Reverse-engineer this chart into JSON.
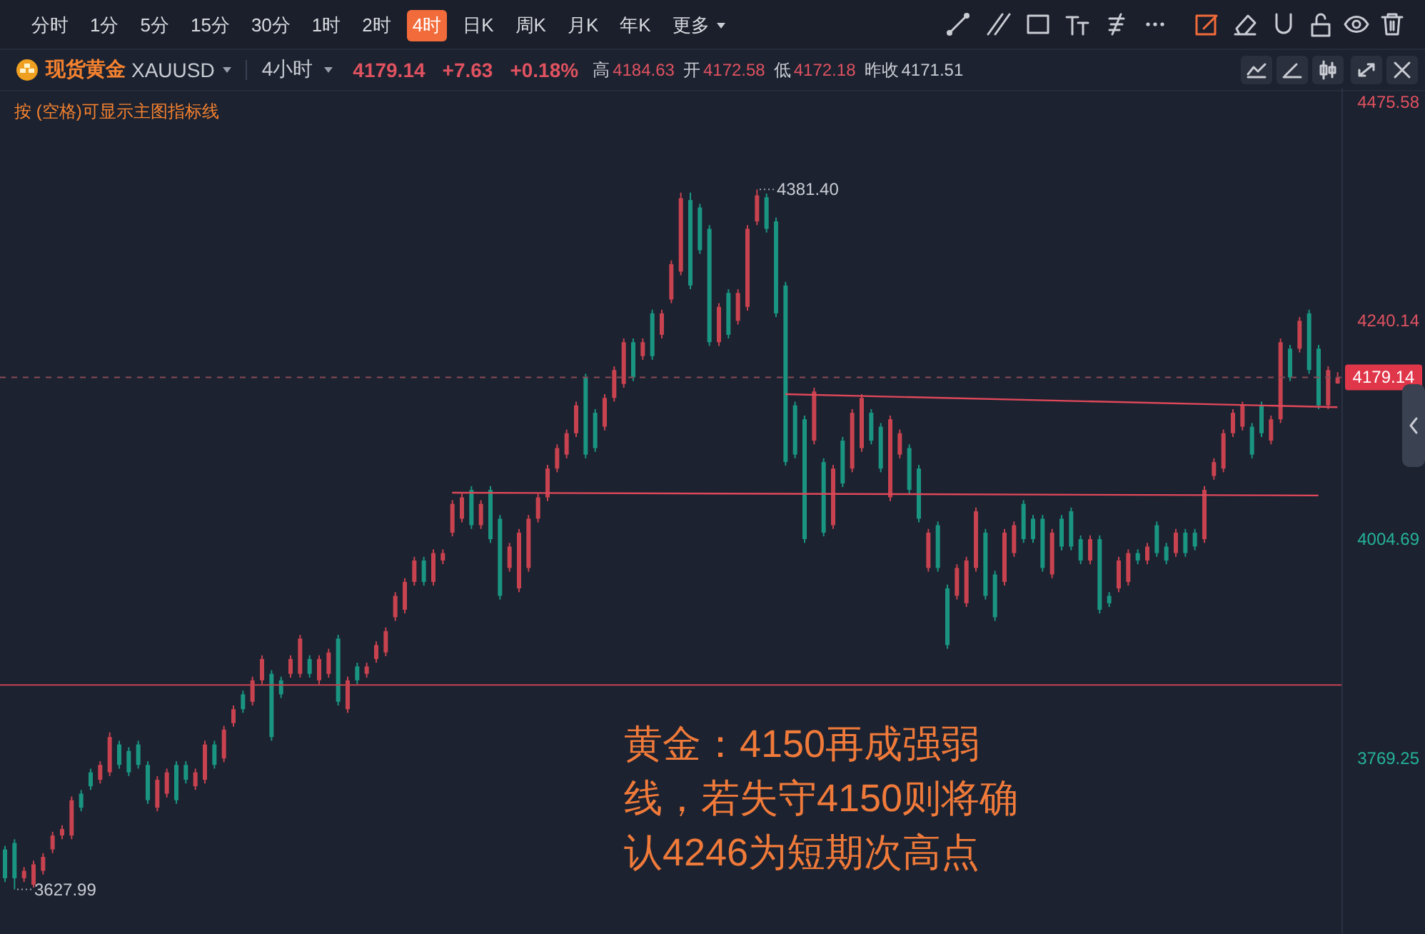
{
  "chart_data": {
    "type": "candlestick",
    "title": "现货黄金",
    "subtitle": "XAUUSD",
    "categories": [
      null,
      null,
      null,
      null,
      null,
      null,
      null,
      null,
      null,
      null,
      null,
      null,
      null,
      null,
      null,
      null,
      null,
      null,
      null,
      null,
      null,
      null,
      null,
      null,
      null,
      null,
      null,
      null,
      null,
      null,
      null,
      null,
      null,
      null,
      null,
      null,
      null,
      null,
      null,
      null,
      null,
      null,
      null,
      null,
      null,
      null,
      null,
      null,
      null,
      null,
      null,
      null,
      null,
      null,
      null,
      null,
      null,
      null,
      null,
      null,
      null,
      null,
      null,
      null,
      null,
      null,
      null,
      null,
      null,
      null,
      null,
      null,
      null,
      null,
      null,
      null,
      null,
      null,
      null,
      null,
      null,
      null,
      null,
      null,
      null,
      null,
      null,
      null,
      null,
      null,
      null,
      null,
      null,
      null,
      null,
      null,
      null,
      null,
      null,
      null,
      null,
      null,
      null,
      null,
      null,
      null,
      null,
      null,
      null,
      null,
      null,
      null,
      null,
      null,
      null,
      null,
      null,
      null,
      null,
      null,
      null,
      null,
      null,
      null,
      null,
      null,
      null,
      null,
      null,
      null,
      null,
      null,
      null,
      null,
      null,
      null,
      null,
      null,
      null,
      null,
      null
    ],
    "ohlc": [
      [
        3671,
        3675,
        3636,
        3640
      ],
      [
        3678,
        3682,
        3627.99,
        3640
      ],
      [
        3640,
        3652,
        3636,
        3648
      ],
      [
        3633,
        3659,
        3630,
        3655
      ],
      [
        3648,
        3667,
        3644,
        3663
      ],
      [
        3671,
        3690,
        3667,
        3686
      ],
      [
        3686,
        3697,
        3682,
        3693
      ],
      [
        3686,
        3728,
        3682,
        3724
      ],
      [
        3731,
        3735,
        3712,
        3716
      ],
      [
        3754,
        3758,
        3735,
        3739
      ],
      [
        3746,
        3766,
        3742,
        3762
      ],
      [
        3754,
        3797,
        3750,
        3792
      ],
      [
        3784,
        3788,
        3758,
        3762
      ],
      [
        3777,
        3781,
        3750,
        3754
      ],
      [
        3784,
        3788,
        3758,
        3762
      ],
      [
        3762,
        3766,
        3720,
        3724
      ],
      [
        3716,
        3750,
        3712,
        3746
      ],
      [
        3731,
        3758,
        3727,
        3754
      ],
      [
        3762,
        3766,
        3720,
        3724
      ],
      [
        3762,
        3766,
        3742,
        3746
      ],
      [
        3739,
        3758,
        3735,
        3754
      ],
      [
        3746,
        3788,
        3742,
        3784
      ],
      [
        3784,
        3788,
        3758,
        3762
      ],
      [
        3769,
        3804,
        3765,
        3800
      ],
      [
        3807,
        3826,
        3803,
        3822
      ],
      [
        3838,
        3842,
        3818,
        3822
      ],
      [
        3830,
        3857,
        3826,
        3853
      ],
      [
        3853,
        3880,
        3849,
        3876
      ],
      [
        3860,
        3864,
        3788,
        3792
      ],
      [
        3853,
        3857,
        3834,
        3838
      ],
      [
        3860,
        3880,
        3856,
        3876
      ],
      [
        3860,
        3902,
        3856,
        3898
      ],
      [
        3876,
        3880,
        3856,
        3860
      ],
      [
        3853,
        3880,
        3849,
        3876
      ],
      [
        3860,
        3887,
        3856,
        3883
      ],
      [
        3898,
        3902,
        3826,
        3830
      ],
      [
        3822,
        3857,
        3818,
        3853
      ],
      [
        3868,
        3872,
        3849,
        3853
      ],
      [
        3860,
        3872,
        3856,
        3868
      ],
      [
        3876,
        3895,
        3872,
        3891
      ],
      [
        3883,
        3910,
        3879,
        3906
      ],
      [
        3921,
        3948,
        3917,
        3944
      ],
      [
        3929,
        3963,
        3925,
        3959
      ],
      [
        3959,
        3986,
        3955,
        3982
      ],
      [
        3982,
        3986,
        3955,
        3959
      ],
      [
        3959,
        3994,
        3955,
        3990
      ],
      [
        3982,
        3994,
        3978,
        3990
      ],
      [
        4012,
        4047,
        4008,
        4043
      ],
      [
        4027,
        4054,
        4023,
        4050
      ],
      [
        4058,
        4062,
        4016,
        4020
      ],
      [
        4020,
        4047,
        4016,
        4043
      ],
      [
        4058,
        4062,
        4001,
        4005
      ],
      [
        4027,
        4031,
        3940,
        3944
      ],
      [
        3974,
        4001,
        3970,
        3997
      ],
      [
        3952,
        4016,
        3948,
        4012
      ],
      [
        3974,
        4031,
        3970,
        4027
      ],
      [
        4027,
        4054,
        4023,
        4050
      ],
      [
        4050,
        4085,
        4046,
        4081
      ],
      [
        4081,
        4107,
        4077,
        4103
      ],
      [
        4096,
        4123,
        4092,
        4119
      ],
      [
        4119,
        4153,
        4115,
        4149
      ],
      [
        4179,
        4183,
        4092,
        4096
      ],
      [
        4141,
        4145,
        4099,
        4103
      ],
      [
        4126,
        4161,
        4122,
        4157
      ],
      [
        4157,
        4191,
        4153,
        4187
      ],
      [
        4172,
        4221,
        4168,
        4217
      ],
      [
        4217,
        4221,
        4175,
        4179
      ],
      [
        4202,
        4221,
        4198,
        4217
      ],
      [
        4248,
        4252,
        4198,
        4202
      ],
      [
        4225,
        4252,
        4221,
        4248
      ],
      [
        4263,
        4305,
        4259,
        4301
      ],
      [
        4293,
        4378,
        4289,
        4372
      ],
      [
        4370,
        4378,
        4274,
        4278
      ],
      [
        4362,
        4366,
        4312,
        4316
      ],
      [
        4339,
        4343,
        4213,
        4217
      ],
      [
        4217,
        4259,
        4213,
        4255
      ],
      [
        4270,
        4274,
        4221,
        4225
      ],
      [
        4240,
        4274,
        4236,
        4270
      ],
      [
        4255,
        4343,
        4251,
        4339
      ],
      [
        4347,
        4381.4,
        4343,
        4375
      ],
      [
        4373,
        4377,
        4335,
        4339
      ],
      [
        4347,
        4351,
        4244,
        4248
      ],
      [
        4278,
        4282,
        4084,
        4088
      ],
      [
        4149,
        4153,
        4092,
        4096
      ],
      [
        4134,
        4138,
        4001,
        4005
      ],
      [
        4111,
        4168,
        4107,
        4164
      ],
      [
        4088,
        4092,
        4008,
        4012
      ],
      [
        4020,
        4085,
        4016,
        4081
      ],
      [
        4111,
        4115,
        4061,
        4065
      ],
      [
        4081,
        4145,
        4077,
        4141
      ],
      [
        4103,
        4161,
        4099,
        4157
      ],
      [
        4141,
        4145,
        4107,
        4111
      ],
      [
        4126,
        4130,
        4077,
        4081
      ],
      [
        4050,
        4138,
        4046,
        4134
      ],
      [
        4096,
        4123,
        4092,
        4119
      ],
      [
        4103,
        4107,
        4054,
        4058
      ],
      [
        4081,
        4085,
        4023,
        4027
      ],
      [
        3974,
        4016,
        3970,
        4012
      ],
      [
        4020,
        4024,
        3970,
        3974
      ],
      [
        3952,
        3956,
        3887,
        3891
      ],
      [
        3944,
        3978,
        3940,
        3974
      ],
      [
        3936,
        3986,
        3932,
        3982
      ],
      [
        3974,
        4039,
        3970,
        4035
      ],
      [
        4012,
        4016,
        3940,
        3944
      ],
      [
        3967,
        3971,
        3917,
        3921
      ],
      [
        3959,
        4016,
        3955,
        4012
      ],
      [
        3990,
        4024,
        3986,
        4020
      ],
      [
        4043,
        4047,
        4001,
        4005
      ],
      [
        4027,
        4031,
        4001,
        4005
      ],
      [
        4027,
        4031,
        3970,
        3974
      ],
      [
        3967,
        4016,
        3963,
        4012
      ],
      [
        4027,
        4031,
        3993,
        3997
      ],
      [
        4035,
        4039,
        3993,
        3997
      ],
      [
        4005,
        4009,
        3978,
        3982
      ],
      [
        3982,
        4009,
        3978,
        4005
      ],
      [
        4005,
        4009,
        3925,
        3929
      ],
      [
        3944,
        3948,
        3932,
        3936
      ],
      [
        3952,
        3986,
        3948,
        3982
      ],
      [
        3959,
        3994,
        3955,
        3990
      ],
      [
        3990,
        3994,
        3978,
        3982
      ],
      [
        3982,
        4001,
        3978,
        3997
      ],
      [
        4020,
        4024,
        3986,
        3990
      ],
      [
        3997,
        4001,
        3978,
        3982
      ],
      [
        3990,
        4016,
        3986,
        4012
      ],
      [
        4012,
        4016,
        3986,
        3990
      ],
      [
        4012,
        4016,
        3993,
        3997
      ],
      [
        4005,
        4062,
        4001,
        4058
      ],
      [
        4073,
        4092,
        4069,
        4088
      ],
      [
        4081,
        4123,
        4077,
        4119
      ],
      [
        4119,
        4145,
        4115,
        4141
      ],
      [
        4126,
        4153,
        4122,
        4149
      ],
      [
        4126,
        4130,
        4092,
        4096
      ],
      [
        4149,
        4153,
        4115,
        4119
      ],
      [
        4111,
        4138,
        4107,
        4134
      ],
      [
        4134,
        4221,
        4130,
        4217
      ],
      [
        4210,
        4214,
        4175,
        4179
      ],
      [
        4210,
        4244,
        4206,
        4240
      ],
      [
        4248,
        4252,
        4183,
        4187
      ],
      [
        4210,
        4214,
        4145,
        4149
      ],
      [
        4149,
        4191,
        4145,
        4187
      ],
      [
        4172.58,
        4184.63,
        4172.18,
        4179.14
      ]
    ],
    "colors": [
      "#1a9582",
      "#1a9582",
      "#c8424f",
      "#c8424f",
      "#c8424f",
      "#c8424f",
      "#c8424f",
      "#c8424f",
      "#1a9582",
      "#1a9582",
      "#c8424f",
      "#c8424f",
      "#1a9582",
      "#1a9582",
      "#1a9582",
      "#1a9582",
      "#c8424f",
      "#c8424f",
      "#1a9582",
      "#1a9582",
      "#c8424f",
      "#c8424f",
      "#1a9582",
      "#c8424f",
      "#c8424f",
      "#1a9582",
      "#c8424f",
      "#c8424f",
      "#1a9582",
      "#1a9582",
      "#c8424f",
      "#c8424f",
      "#1a9582",
      "#c8424f",
      "#c8424f",
      "#1a9582",
      "#c8424f",
      "#1a9582",
      "#c8424f",
      "#c8424f",
      "#c8424f",
      "#c8424f",
      "#c8424f",
      "#c8424f",
      "#1a9582",
      "#c8424f",
      "#c8424f",
      "#c8424f",
      "#c8424f",
      "#1a9582",
      "#c8424f",
      "#1a9582",
      "#1a9582",
      "#c8424f",
      "#c8424f",
      "#c8424f",
      "#c8424f",
      "#c8424f",
      "#c8424f",
      "#c8424f",
      "#c8424f",
      "#1a9582",
      "#1a9582",
      "#c8424f",
      "#c8424f",
      "#c8424f",
      "#1a9582",
      "#c8424f",
      "#1a9582",
      "#c8424f",
      "#c8424f",
      "#c8424f",
      "#1a9582",
      "#1a9582",
      "#1a9582",
      "#c8424f",
      "#1a9582",
      "#c8424f",
      "#c8424f",
      "#c8424f",
      "#1a9582",
      "#1a9582",
      "#1a9582",
      "#1a9582",
      "#1a9582",
      "#c8424f",
      "#1a9582",
      "#c8424f",
      "#1a9582",
      "#c8424f",
      "#c8424f",
      "#1a9582",
      "#1a9582",
      "#c8424f",
      "#c8424f",
      "#1a9582",
      "#1a9582",
      "#c8424f",
      "#1a9582",
      "#1a9582",
      "#c8424f",
      "#c8424f",
      "#c8424f",
      "#1a9582",
      "#1a9582",
      "#c8424f",
      "#c8424f",
      "#1a9582",
      "#1a9582",
      "#1a9582",
      "#c8424f",
      "#1a9582",
      "#1a9582",
      "#1a9582",
      "#c8424f",
      "#1a9582",
      "#1a9582",
      "#c8424f",
      "#c8424f",
      "#1a9582",
      "#c8424f",
      "#1a9582",
      "#1a9582",
      "#c8424f",
      "#1a9582",
      "#1a9582",
      "#c8424f",
      "#c8424f",
      "#c8424f",
      "#c8424f",
      "#c8424f",
      "#1a9582",
      "#1a9582",
      "#c8424f",
      "#c8424f",
      "#1a9582",
      "#c8424f",
      "#1a9582",
      "#1a9582",
      "#c8424f",
      "#c8424f"
    ],
    "series": [
      {
        "type": "line",
        "color": "#e0485a",
        "values": [
          null,
          null,
          null,
          null,
          null,
          null,
          null,
          null,
          null,
          null,
          null,
          null,
          null,
          null,
          null,
          null,
          null,
          null,
          null,
          null,
          null,
          null,
          null,
          null,
          null,
          null,
          null,
          null,
          null,
          null,
          null,
          null,
          null,
          null,
          null,
          null,
          null,
          null,
          null,
          null,
          null,
          null,
          null,
          null,
          null,
          null,
          null,
          null,
          null,
          null,
          null,
          null,
          null,
          null,
          null,
          null,
          null,
          null,
          null,
          null,
          null,
          null,
          null,
          null,
          null,
          null,
          null,
          null,
          null,
          null,
          null,
          null,
          null,
          null,
          null,
          null,
          null,
          null,
          null,
          null,
          null,
          null,
          4161,
          null,
          null,
          null,
          null,
          null,
          null,
          null,
          null,
          null,
          null,
          null,
          null,
          null,
          null,
          null,
          null,
          null,
          null,
          null,
          null,
          null,
          null,
          null,
          null,
          null,
          null,
          null,
          null,
          null,
          null,
          null,
          null,
          null,
          null,
          null,
          null,
          null,
          null,
          null,
          null,
          null,
          null,
          null,
          null,
          null,
          null,
          null,
          null,
          null,
          null,
          null,
          null,
          null,
          null,
          null,
          null,
          null,
          4147
        ]
      },
      {
        "type": "line",
        "color": "#e0485a",
        "values": [
          null,
          null,
          null,
          null,
          null,
          null,
          null,
          null,
          null,
          null,
          null,
          null,
          null,
          null,
          null,
          null,
          null,
          null,
          null,
          null,
          null,
          null,
          null,
          null,
          null,
          null,
          null,
          null,
          null,
          null,
          null,
          null,
          null,
          null,
          null,
          null,
          null,
          null,
          null,
          null,
          null,
          null,
          null,
          null,
          null,
          null,
          null,
          4055,
          null,
          null,
          null,
          null,
          null,
          null,
          null,
          null,
          null,
          null,
          null,
          null,
          null,
          null,
          null,
          null,
          null,
          null,
          null,
          null,
          null,
          null,
          null,
          null,
          null,
          null,
          null,
          null,
          null,
          null,
          null,
          null,
          null,
          null,
          null,
          null,
          null,
          null,
          null,
          null,
          null,
          null,
          null,
          null,
          null,
          null,
          null,
          null,
          null,
          null,
          null,
          null,
          null,
          null,
          null,
          null,
          null,
          null,
          null,
          null,
          null,
          null,
          null,
          null,
          null,
          null,
          null,
          null,
          null,
          null,
          null,
          null,
          null,
          null,
          null,
          null,
          null,
          null,
          null,
          null,
          null,
          null,
          null,
          null,
          null,
          null,
          null,
          null,
          null,
          null,
          4052,
          null,
          null
        ]
      }
    ],
    "ylim": [
      3580,
      4490
    ],
    "yticks": [
      4475.58,
      4240.14,
      4004.69,
      3769.25
    ],
    "tick_labels": "y",
    "ref_lines": [
      {
        "axis": "y",
        "value": 4179.14,
        "label": "4179.14",
        "color": "#8a4a55",
        "line_style": "dashed"
      },
      {
        "axis": "y",
        "value": 3848,
        "color": "#c8424f",
        "line_style": "solid"
      }
    ],
    "annotations": [
      "分时",
      "1分",
      "5分",
      "15分",
      "30分",
      "1时",
      "2时",
      "4时",
      "日K",
      "周K",
      "月K",
      "年K",
      "更多",
      "4小时",
      "4179.14",
      "+7.63",
      "+0.18%",
      "高",
      "4184.63",
      "开",
      "4172.58",
      "低",
      "4172.18",
      "昨收",
      "4171.51",
      "按 (空格)可显示主图指标线",
      "黄金：4150再成强弱线，若失守4150则将确认4246为短期次高点",
      "4381.40",
      "3627.99"
    ]
  }
}
